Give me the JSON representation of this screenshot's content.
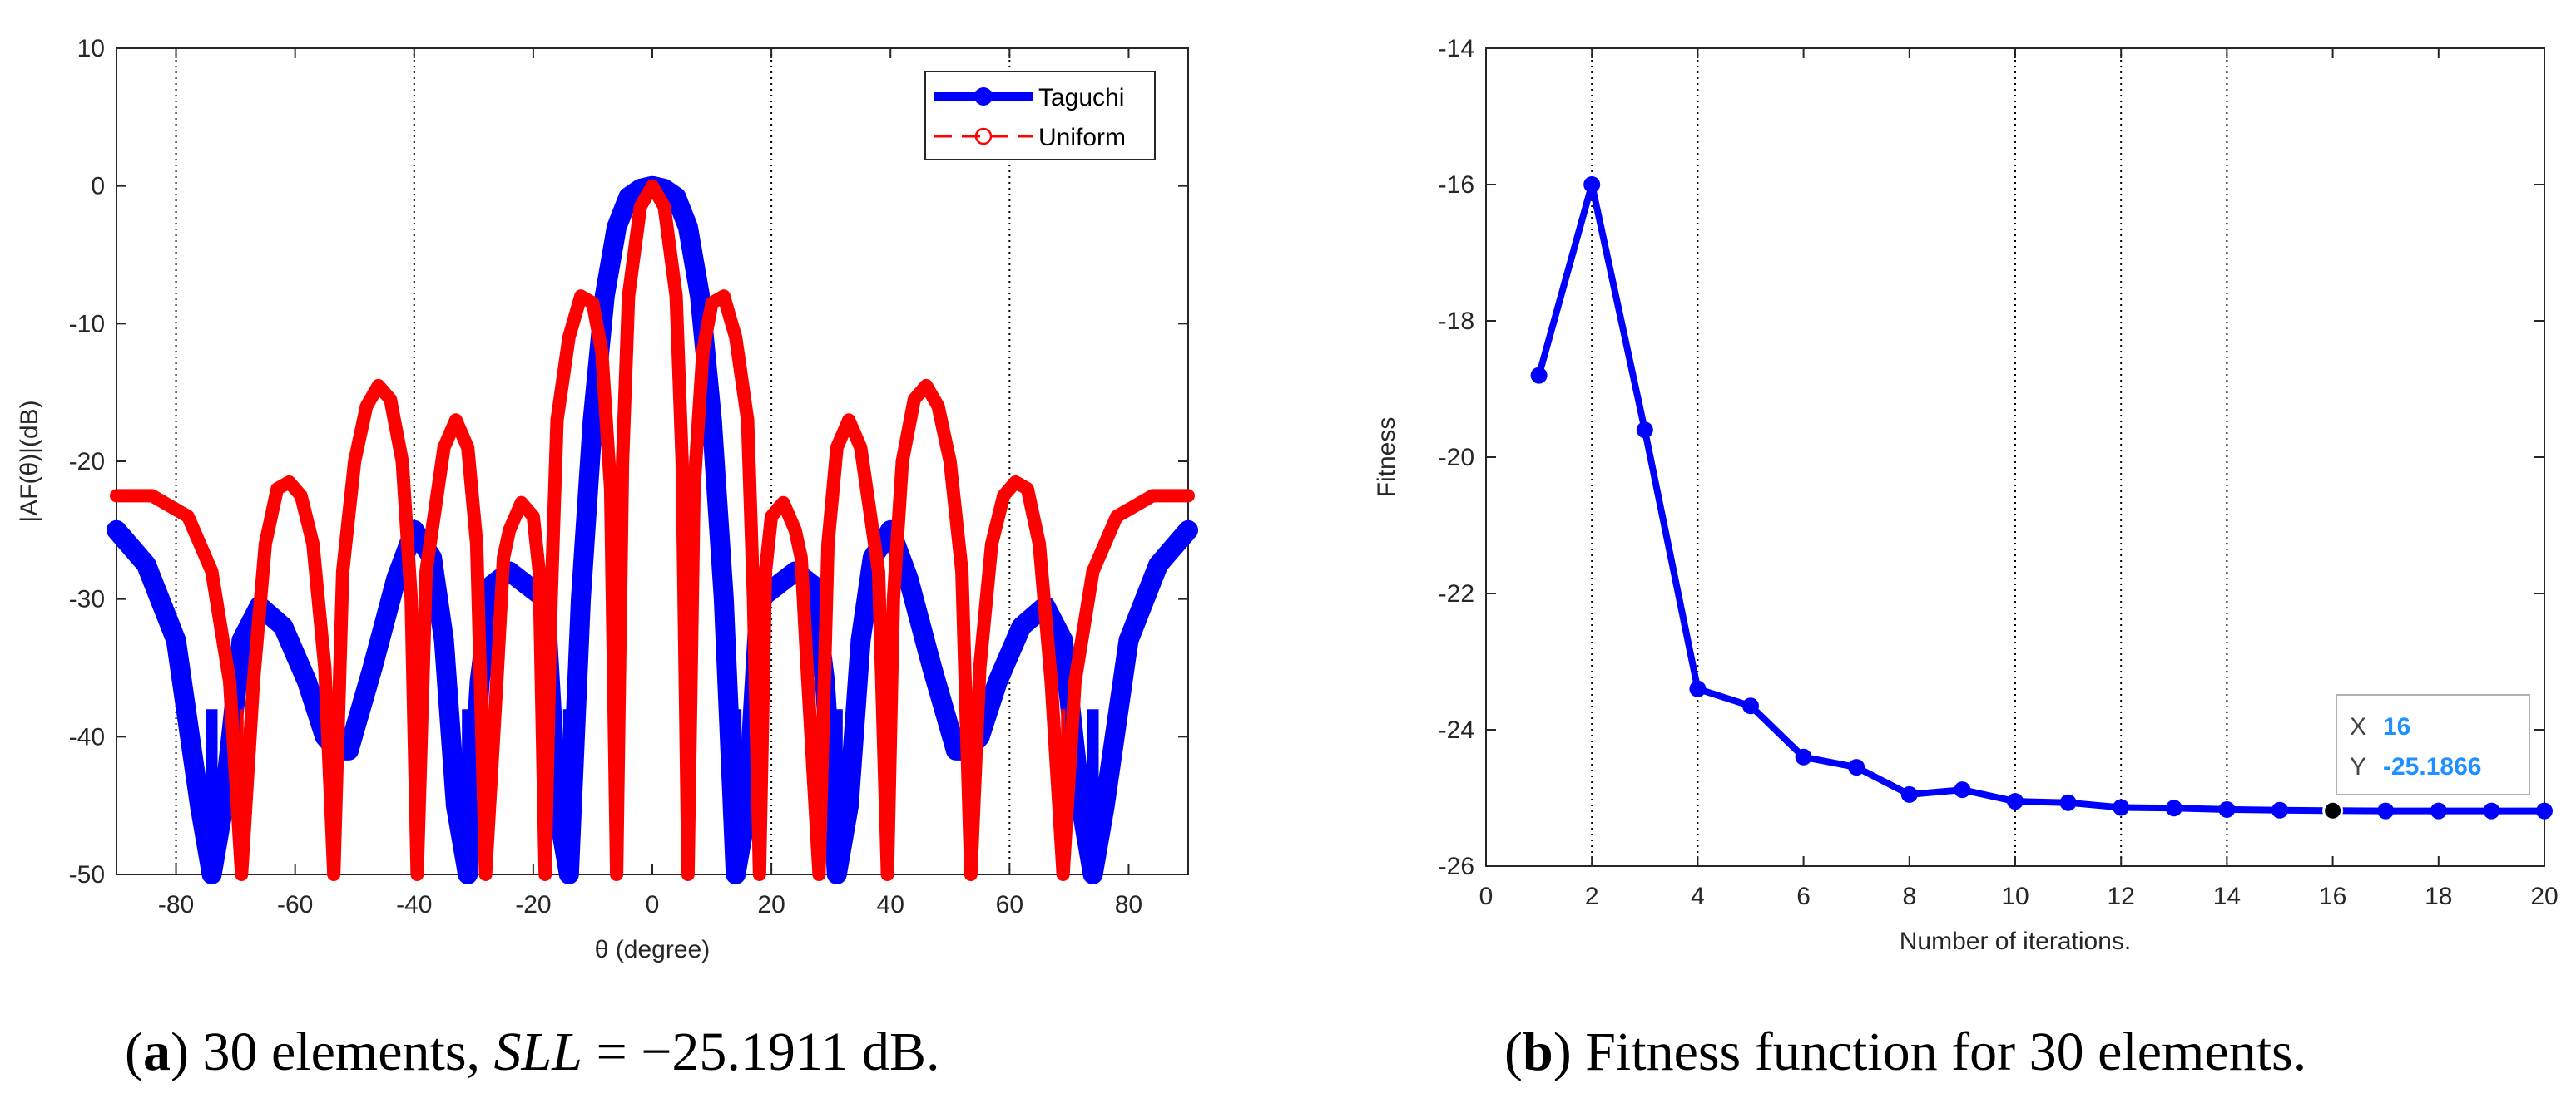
{
  "chart_data": [
    {
      "type": "line",
      "xlabel": "θ (degree)",
      "ylabel": "|AF(θ)|(dB)",
      "xlim": [
        -90,
        90
      ],
      "ylim": [
        -50,
        10
      ],
      "xticks": [
        "-80",
        "-60",
        "-40",
        "-20",
        "0",
        "20",
        "40",
        "60",
        "80"
      ],
      "yticks": [
        "10",
        "0",
        "-10",
        "-20",
        "-30",
        "-40",
        "-50"
      ],
      "grid_x": [
        -80,
        -40,
        20,
        60
      ],
      "legend": {
        "placement": "top-right",
        "entries": [
          "Taguchi",
          "Uniform"
        ]
      },
      "series": [
        {
          "name": "Taguchi",
          "color": "#0000ff",
          "style": "solid-dot",
          "x": [
            -90,
            -85,
            -80,
            -76,
            -74,
            -72,
            -69,
            -66,
            -62,
            -58,
            -55,
            -53,
            -51,
            -47,
            -43,
            -40,
            -37,
            -35,
            -33,
            -31,
            -29,
            -27,
            -24,
            -21,
            -18,
            -16,
            -14,
            -12,
            -10,
            -8,
            -6,
            -4,
            -2,
            0,
            2,
            4,
            6,
            8,
            10,
            12,
            14,
            16,
            18,
            21,
            24,
            27,
            29,
            31,
            33,
            35,
            37,
            40,
            43,
            47,
            51,
            53,
            55,
            58,
            62,
            66,
            69,
            72,
            74,
            76,
            80,
            85,
            90
          ],
          "values": [
            -25,
            -27.5,
            -33,
            -45,
            -50,
            -45,
            -33,
            -30.5,
            -32,
            -36,
            -40,
            -41,
            -41,
            -35,
            -28.5,
            -25,
            -27,
            -33,
            -45,
            -50,
            -36,
            -29,
            -28,
            -29,
            -30,
            -45,
            -50,
            -30,
            -17,
            -8,
            -3,
            -0.8,
            -0.2,
            0,
            -0.2,
            -0.8,
            -3,
            -8,
            -17,
            -30,
            -50,
            -45,
            -30,
            -29,
            -28,
            -29,
            -36,
            -50,
            -45,
            -33,
            -27,
            -25,
            -28.5,
            -35,
            -41,
            -41,
            -40,
            -36,
            -32,
            -30.5,
            -33,
            -45,
            -50,
            -45,
            -33,
            -27.5,
            -25
          ]
        },
        {
          "name": "Uniform",
          "color": "#ff0000",
          "style": "dashed-circle",
          "x": [
            -90,
            -84,
            -78,
            -74,
            -71,
            -69,
            -67,
            -65,
            -63,
            -61,
            -59,
            -57,
            -55,
            -53.5,
            -52,
            -50,
            -48,
            -46,
            -44,
            -42,
            -40.5,
            -39.5,
            -38,
            -35,
            -33,
            -31,
            -29.5,
            -28,
            -26,
            -25,
            -24,
            -22,
            -20,
            -19,
            -18,
            -17,
            -16,
            -14,
            -12,
            -10,
            -8.5,
            -7,
            -6,
            -5,
            -4,
            -2,
            0,
            2,
            4,
            5,
            6,
            7,
            8.5,
            10,
            12,
            14,
            16,
            17,
            18,
            19,
            20,
            22,
            24,
            25,
            26,
            28,
            29.5,
            31,
            33,
            35,
            38,
            39.5,
            40.5,
            42,
            44,
            46,
            48,
            50,
            52,
            53.5,
            55,
            57,
            59,
            61,
            63,
            65,
            67,
            69,
            71,
            74,
            78,
            84,
            90
          ],
          "values": [
            -22.5,
            -22.5,
            -24,
            -28,
            -36,
            -50,
            -36,
            -26,
            -22,
            -21.5,
            -22.5,
            -26,
            -35,
            -50,
            -28,
            -20,
            -16,
            -14.5,
            -15.5,
            -20,
            -30,
            -50,
            -28,
            -19,
            -17,
            -19,
            -26,
            -50,
            -35,
            -27,
            -25,
            -23,
            -24,
            -28,
            -50,
            -30,
            -17,
            -11,
            -8,
            -8.5,
            -12,
            -22,
            -50,
            -20,
            -8,
            -1.5,
            0,
            -1.5,
            -8,
            -20,
            -50,
            -22,
            -12,
            -8.5,
            -8,
            -11,
            -17,
            -30,
            -50,
            -28,
            -24,
            -23,
            -25,
            -27,
            -35,
            -50,
            -26,
            -19,
            -17,
            -19,
            -28,
            -50,
            -30,
            -20,
            -15.5,
            -14.5,
            -16,
            -20,
            -28,
            -50,
            -35,
            -26,
            -22.5,
            -21.5,
            -22,
            -26,
            -36,
            -50,
            -36,
            -28,
            -24,
            -22.5,
            -22.5
          ]
        }
      ]
    },
    {
      "type": "line",
      "xlabel": "Number of iterations.",
      "ylabel": "Fitness",
      "xlim": [
        0,
        20
      ],
      "ylim": [
        -26,
        -14
      ],
      "xticks": [
        "0",
        "2",
        "4",
        "6",
        "8",
        "10",
        "12",
        "14",
        "16",
        "18",
        "20"
      ],
      "yticks": [
        "-14",
        "-16",
        "-18",
        "-20",
        "-22",
        "-24",
        "-26"
      ],
      "grid_x": [
        2,
        4,
        10,
        12,
        14
      ],
      "series": [
        {
          "color": "#0000ff",
          "x": [
            1,
            2,
            3,
            4,
            5,
            6,
            7,
            8,
            9,
            10,
            11,
            12,
            13,
            14,
            15,
            16,
            17,
            18,
            19,
            20
          ],
          "values": [
            -18.8,
            -16.0,
            -19.6,
            -23.4,
            -23.65,
            -24.4,
            -24.55,
            -24.95,
            -24.88,
            -25.05,
            -25.07,
            -25.14,
            -25.15,
            -25.17,
            -25.18,
            -25.1866,
            -25.19,
            -25.19,
            -25.19,
            -25.191
          ]
        }
      ],
      "datatip": {
        "x_label": "X",
        "x_value": "16",
        "y_label": "Y",
        "y_value": "-25.1866",
        "point_x": 16,
        "point_y": -25.1866
      }
    }
  ],
  "captions": {
    "a_letter": "a",
    "a_text_1": " 30 elements, ",
    "a_sll": "SLL",
    "a_text_2": " = −25.1911 dB.",
    "b_letter": "b",
    "b_text": " Fitness function for 30 elements."
  }
}
